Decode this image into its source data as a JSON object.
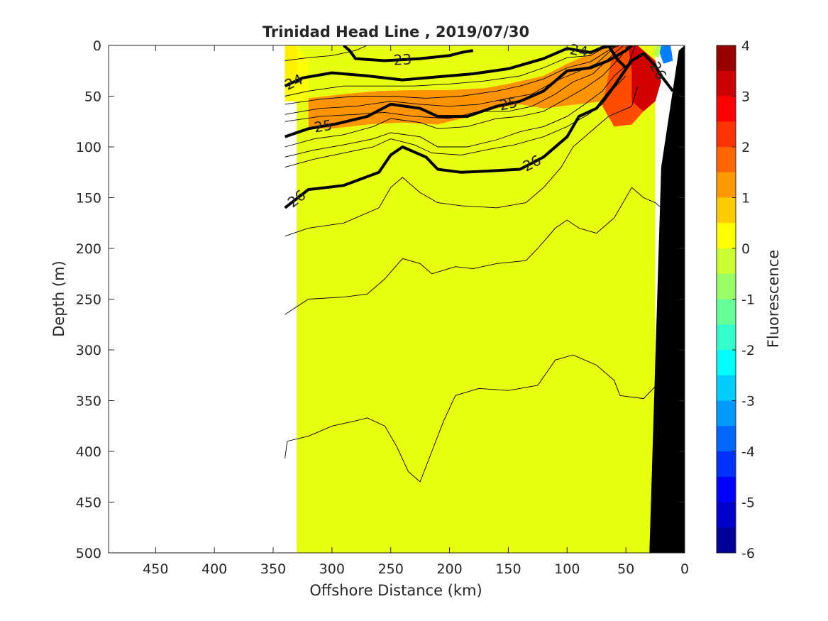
{
  "chart_data": {
    "type": "heatmap",
    "title": "Trinidad Head Line , 2019/07/30",
    "xlabel": "Offshore Distance (km)",
    "ylabel": "Depth (m)",
    "xlim": [
      490,
      0
    ],
    "ylim": [
      500,
      0
    ],
    "x_reversed": true,
    "y_reversed": true,
    "x_ticks": [
      450,
      400,
      350,
      300,
      250,
      200,
      150,
      100,
      50,
      0
    ],
    "y_ticks": [
      0,
      50,
      100,
      150,
      200,
      250,
      300,
      350,
      400,
      450,
      500
    ],
    "colorbar": {
      "label": "Fluorescence",
      "range": [
        -6,
        4
      ],
      "ticks": [
        4,
        3,
        2,
        1,
        0,
        -1,
        -2,
        -3,
        -4,
        -5,
        -6
      ]
    },
    "colors": {
      "background_field": "#e8ff12",
      "bathymetry": "#000000"
    },
    "fluorescence_patches": [
      {
        "points": [
          [
            340,
            0
          ],
          [
            330,
            0
          ],
          [
            320,
            15
          ],
          [
            320,
            55
          ],
          [
            340,
            55
          ]
        ],
        "value": 0.2
      },
      {
        "points": [
          [
            320,
            52
          ],
          [
            290,
            48
          ],
          [
            260,
            45
          ],
          [
            230,
            44
          ],
          [
            200,
            44
          ],
          [
            170,
            42
          ],
          [
            150,
            38
          ],
          [
            120,
            30
          ],
          [
            100,
            18
          ],
          [
            80,
            8
          ],
          [
            70,
            0
          ],
          [
            60,
            0
          ],
          [
            60,
            25
          ],
          [
            60,
            55
          ],
          [
            70,
            55
          ],
          [
            90,
            58
          ],
          [
            120,
            62
          ],
          [
            140,
            58
          ],
          [
            160,
            62
          ],
          [
            190,
            72
          ],
          [
            210,
            78
          ],
          [
            240,
            76
          ],
          [
            270,
            78
          ],
          [
            300,
            82
          ],
          [
            320,
            82
          ]
        ],
        "value": 1.3
      },
      {
        "points": [
          [
            330,
            0
          ],
          [
            340,
            0
          ],
          [
            340,
            35
          ],
          [
            330,
            35
          ]
        ],
        "value": 0.4
      },
      {
        "points": [
          [
            60,
            0
          ],
          [
            48,
            0
          ],
          [
            35,
            5
          ],
          [
            35,
            65
          ],
          [
            45,
            78
          ],
          [
            60,
            80
          ],
          [
            70,
            60
          ]
        ],
        "value": 2.0
      },
      {
        "points": [
          [
            48,
            0
          ],
          [
            40,
            0
          ],
          [
            25,
            15
          ],
          [
            20,
            35
          ],
          [
            25,
            55
          ],
          [
            35,
            65
          ],
          [
            45,
            55
          ],
          [
            45,
            25
          ]
        ],
        "value": 3.2
      },
      {
        "points": [
          [
            20,
            0
          ],
          [
            12,
            0
          ],
          [
            10,
            15
          ],
          [
            18,
            18
          ],
          [
            22,
            5
          ]
        ],
        "value": -3.5
      },
      {
        "points": [
          [
            25,
            0
          ],
          [
            20,
            0
          ],
          [
            22,
            12
          ],
          [
            26,
            10
          ]
        ],
        "value": -0.5
      }
    ],
    "bold_contours": [
      {
        "label": "23",
        "points": [
          [
            290,
            0
          ],
          [
            285,
            5
          ],
          [
            280,
            13
          ],
          [
            255,
            15
          ],
          [
            225,
            13
          ],
          [
            200,
            10
          ],
          [
            190,
            7
          ],
          [
            180,
            5
          ]
        ]
      },
      {
        "label": "24",
        "points": [
          [
            340,
            40
          ],
          [
            325,
            32
          ],
          [
            300,
            27
          ],
          [
            270,
            30
          ],
          [
            240,
            34
          ],
          [
            210,
            31
          ],
          [
            180,
            28
          ],
          [
            150,
            23
          ],
          [
            120,
            13
          ],
          [
            100,
            3
          ],
          [
            80,
            7
          ],
          [
            70,
            2
          ],
          [
            60,
            0
          ]
        ]
      },
      {
        "label": "24",
        "points": [
          [
            65,
            0
          ],
          [
            57,
            14
          ],
          [
            50,
            22
          ]
        ]
      },
      {
        "label": "25",
        "points": [
          [
            340,
            90
          ],
          [
            320,
            82
          ],
          [
            295,
            77
          ],
          [
            270,
            70
          ],
          [
            250,
            58
          ],
          [
            225,
            62
          ],
          [
            210,
            70
          ],
          [
            185,
            70
          ],
          [
            160,
            60
          ],
          [
            140,
            55
          ],
          [
            120,
            45
          ],
          [
            100,
            25
          ],
          [
            80,
            22
          ],
          [
            65,
            15
          ],
          [
            50,
            5
          ],
          [
            45,
            0
          ]
        ]
      },
      {
        "label": "26",
        "points": [
          [
            340,
            160
          ],
          [
            320,
            142
          ],
          [
            290,
            138
          ],
          [
            260,
            125
          ],
          [
            250,
            108
          ],
          [
            240,
            100
          ],
          [
            220,
            110
          ],
          [
            210,
            122
          ],
          [
            190,
            125
          ],
          [
            170,
            124
          ],
          [
            140,
            122
          ],
          [
            120,
            110
          ],
          [
            100,
            90
          ],
          [
            90,
            70
          ],
          [
            75,
            62
          ],
          [
            60,
            40
          ],
          [
            45,
            15
          ],
          [
            35,
            8
          ],
          [
            25,
            20
          ],
          [
            20,
            30
          ],
          [
            10,
            45
          ]
        ]
      }
    ],
    "thin_contours": [
      [
        [
          340,
          15
        ],
        [
          320,
          12
        ],
        [
          300,
          10
        ],
        [
          280,
          5
        ],
        [
          270,
          0
        ]
      ],
      [
        [
          340,
          50
        ],
        [
          320,
          45
        ],
        [
          290,
          40
        ],
        [
          260,
          40
        ],
        [
          230,
          40
        ],
        [
          200,
          38
        ],
        [
          170,
          35
        ],
        [
          140,
          30
        ],
        [
          120,
          22
        ],
        [
          100,
          12
        ],
        [
          80,
          10
        ],
        [
          65,
          0
        ]
      ],
      [
        [
          340,
          58
        ],
        [
          310,
          53
        ],
        [
          280,
          50
        ],
        [
          250,
          50
        ],
        [
          220,
          52
        ],
        [
          190,
          50
        ],
        [
          160,
          45
        ],
        [
          140,
          40
        ],
        [
          120,
          33
        ],
        [
          100,
          22
        ],
        [
          80,
          16
        ],
        [
          65,
          5
        ],
        [
          58,
          0
        ]
      ],
      [
        [
          340,
          68
        ],
        [
          310,
          62
        ],
        [
          280,
          60
        ],
        [
          250,
          55
        ],
        [
          225,
          58
        ],
        [
          200,
          60
        ],
        [
          175,
          58
        ],
        [
          150,
          52
        ],
        [
          130,
          48
        ],
        [
          110,
          35
        ],
        [
          95,
          28
        ],
        [
          75,
          18
        ],
        [
          60,
          2
        ],
        [
          55,
          0
        ]
      ],
      [
        [
          340,
          75
        ],
        [
          310,
          70
        ],
        [
          280,
          68
        ],
        [
          255,
          66
        ],
        [
          230,
          70
        ],
        [
          200,
          72
        ],
        [
          175,
          65
        ],
        [
          150,
          65
        ],
        [
          130,
          60
        ],
        [
          110,
          48
        ],
        [
          95,
          36
        ],
        [
          78,
          28
        ],
        [
          62,
          10
        ],
        [
          52,
          0
        ]
      ],
      [
        [
          340,
          100
        ],
        [
          315,
          92
        ],
        [
          290,
          88
        ],
        [
          265,
          80
        ],
        [
          250,
          72
        ],
        [
          225,
          76
        ],
        [
          210,
          82
        ],
        [
          185,
          80
        ],
        [
          160,
          72
        ],
        [
          140,
          70
        ],
        [
          120,
          65
        ],
        [
          100,
          52
        ],
        [
          85,
          42
        ],
        [
          70,
          30
        ],
        [
          55,
          12
        ],
        [
          48,
          0
        ]
      ],
      [
        [
          340,
          110
        ],
        [
          315,
          103
        ],
        [
          290,
          98
        ],
        [
          265,
          92
        ],
        [
          250,
          86
        ],
        [
          225,
          90
        ],
        [
          210,
          100
        ],
        [
          185,
          100
        ],
        [
          160,
          93
        ],
        [
          140,
          85
        ],
        [
          120,
          80
        ],
        [
          100,
          70
        ],
        [
          85,
          58
        ],
        [
          70,
          45
        ],
        [
          60,
          30
        ],
        [
          48,
          18
        ],
        [
          42,
          0
        ]
      ],
      [
        [
          340,
          120
        ],
        [
          315,
          112
        ],
        [
          290,
          106
        ],
        [
          265,
          100
        ],
        [
          250,
          92
        ],
        [
          230,
          98
        ],
        [
          215,
          106
        ],
        [
          190,
          108
        ],
        [
          165,
          102
        ],
        [
          145,
          98
        ],
        [
          120,
          90
        ],
        [
          100,
          80
        ],
        [
          82,
          68
        ],
        [
          70,
          58
        ],
        [
          60,
          42
        ],
        [
          50,
          30
        ]
      ],
      [
        [
          340,
          188
        ],
        [
          320,
          180
        ],
        [
          290,
          175
        ],
        [
          260,
          160
        ],
        [
          250,
          140
        ],
        [
          240,
          130
        ],
        [
          225,
          145
        ],
        [
          210,
          155
        ],
        [
          190,
          158
        ],
        [
          160,
          160
        ],
        [
          135,
          155
        ],
        [
          120,
          140
        ],
        [
          105,
          120
        ],
        [
          95,
          100
        ],
        [
          80,
          85
        ],
        [
          65,
          70
        ],
        [
          45,
          60
        ],
        [
          40,
          40
        ]
      ],
      [
        [
          340,
          265
        ],
        [
          320,
          250
        ],
        [
          290,
          248
        ],
        [
          270,
          245
        ],
        [
          255,
          230
        ],
        [
          240,
          210
        ],
        [
          225,
          215
        ],
        [
          215,
          225
        ],
        [
          195,
          218
        ],
        [
          180,
          220
        ],
        [
          160,
          215
        ],
        [
          135,
          212
        ],
        [
          125,
          200
        ],
        [
          110,
          180
        ],
        [
          100,
          172
        ],
        [
          90,
          180
        ],
        [
          75,
          185
        ],
        [
          60,
          170
        ],
        [
          45,
          140
        ],
        [
          35,
          150
        ],
        [
          25,
          155
        ],
        [
          20,
          160
        ]
      ],
      [
        [
          340,
          407
        ],
        [
          338,
          390
        ],
        [
          320,
          385
        ],
        [
          300,
          375
        ],
        [
          280,
          370
        ],
        [
          270,
          367
        ],
        [
          255,
          375
        ],
        [
          245,
          395
        ],
        [
          235,
          420
        ],
        [
          225,
          430
        ],
        [
          215,
          400
        ],
        [
          205,
          370
        ],
        [
          195,
          345
        ],
        [
          175,
          338
        ],
        [
          150,
          340
        ],
        [
          125,
          335
        ],
        [
          110,
          310
        ],
        [
          95,
          305
        ],
        [
          75,
          315
        ],
        [
          60,
          330
        ],
        [
          55,
          345
        ],
        [
          35,
          348
        ],
        [
          20,
          330
        ],
        [
          15,
          310
        ],
        [
          12,
          300
        ],
        [
          8,
          302
        ],
        [
          5,
          320
        ],
        [
          0,
          360
        ]
      ]
    ],
    "bathymetry": [
      [
        30,
        500
      ],
      [
        20,
        120
      ],
      [
        5,
        5
      ],
      [
        0,
        0
      ],
      [
        0,
        500
      ]
    ]
  }
}
